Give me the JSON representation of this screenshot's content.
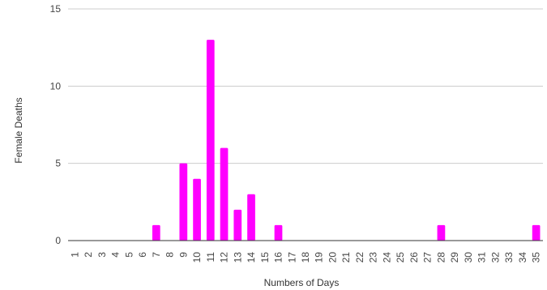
{
  "chart_data": {
    "type": "bar",
    "xlabel": "Numbers of Days",
    "ylabel": "Female Deaths",
    "ylim": [
      0,
      15
    ],
    "yticks": [
      0,
      5,
      10,
      15
    ],
    "grid": true,
    "legend": "none",
    "bar_color": "#ff00ff",
    "categories": [
      "1",
      "2",
      "3",
      "4",
      "5",
      "6",
      "7",
      "8",
      "9",
      "10",
      "11",
      "12",
      "13",
      "14",
      "15",
      "16",
      "17",
      "18",
      "19",
      "20",
      "21",
      "22",
      "23",
      "24",
      "25",
      "26",
      "27",
      "28",
      "29",
      "30",
      "31",
      "32",
      "33",
      "34",
      "35"
    ],
    "values": [
      0,
      0,
      0,
      0,
      0,
      0,
      1,
      0,
      5,
      4,
      13,
      6,
      2,
      3,
      0,
      1,
      0,
      0,
      0,
      0,
      0,
      0,
      0,
      0,
      0,
      0,
      0,
      1,
      0,
      0,
      0,
      0,
      0,
      0,
      1
    ]
  }
}
